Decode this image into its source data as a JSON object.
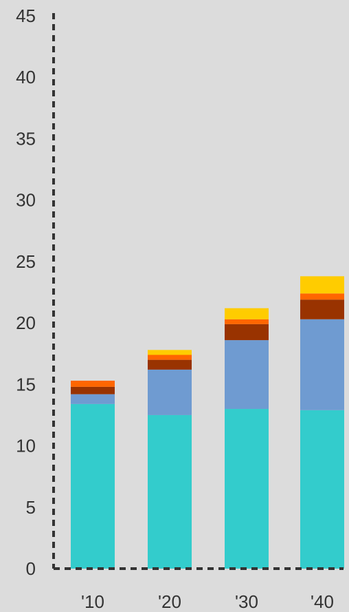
{
  "chart_data": {
    "type": "bar",
    "stacked": true,
    "categories": [
      "'10",
      "'20",
      "'30",
      "'40"
    ],
    "series": [
      {
        "values": [
          13.4,
          12.5,
          13.0,
          12.9
        ],
        "color": "#33cccc"
      },
      {
        "values": [
          0.8,
          3.7,
          5.6,
          7.4
        ],
        "color": "#6f9bd1"
      },
      {
        "values": [
          0.6,
          0.8,
          1.3,
          1.6
        ],
        "color": "#993300"
      },
      {
        "values": [
          0.5,
          0.4,
          0.4,
          0.5
        ],
        "color": "#ff6600"
      },
      {
        "values": [
          0.0,
          0.4,
          0.9,
          1.4
        ],
        "color": "#ffcc00"
      }
    ],
    "y_ticks": [
      0,
      5,
      10,
      15,
      20,
      25,
      30,
      35,
      40,
      45
    ],
    "ylim": [
      0,
      45
    ],
    "grid": false,
    "axis_color": "#333333",
    "background": "#dcdcdc"
  }
}
